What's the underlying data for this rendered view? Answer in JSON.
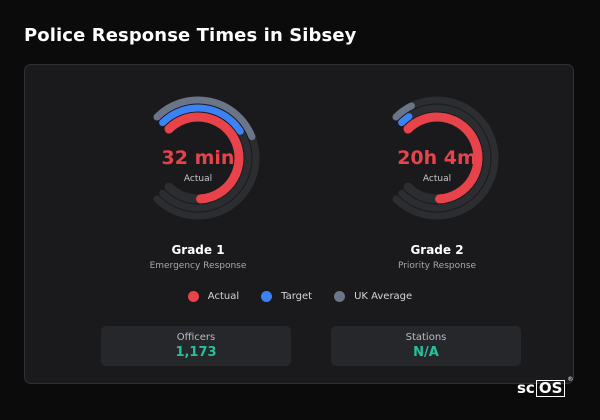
{
  "page": {
    "title": "Police Response Times in Sibsey"
  },
  "colors": {
    "actual": "#e8424b",
    "target": "#3b82f6",
    "uk_average": "#6b7588",
    "track": "#2c2d31",
    "stat_value": "#22c39a"
  },
  "gauges": [
    {
      "value": "32 min",
      "value_caption": "Actual",
      "grade": "Grade 1",
      "description": "Emergency Response",
      "rings": {
        "actual": 0.82,
        "target": 0.38,
        "uk_average": 0.42
      }
    },
    {
      "value": "20h 4m",
      "value_caption": "Actual",
      "grade": "Grade 2",
      "description": "Priority Response",
      "rings": {
        "actual": 0.82,
        "target": 0.04,
        "uk_average": 0.07
      }
    }
  ],
  "legend": [
    {
      "label": "Actual",
      "color": "#e8424b"
    },
    {
      "label": "Target",
      "color": "#3b82f6"
    },
    {
      "label": "UK Average",
      "color": "#6b7588"
    }
  ],
  "stats": [
    {
      "label": "Officers",
      "value": "1,173"
    },
    {
      "label": "Stations",
      "value": "N/A"
    }
  ],
  "brand": {
    "text_prefix": "sc",
    "text_box": "OS",
    "reg": "®"
  }
}
